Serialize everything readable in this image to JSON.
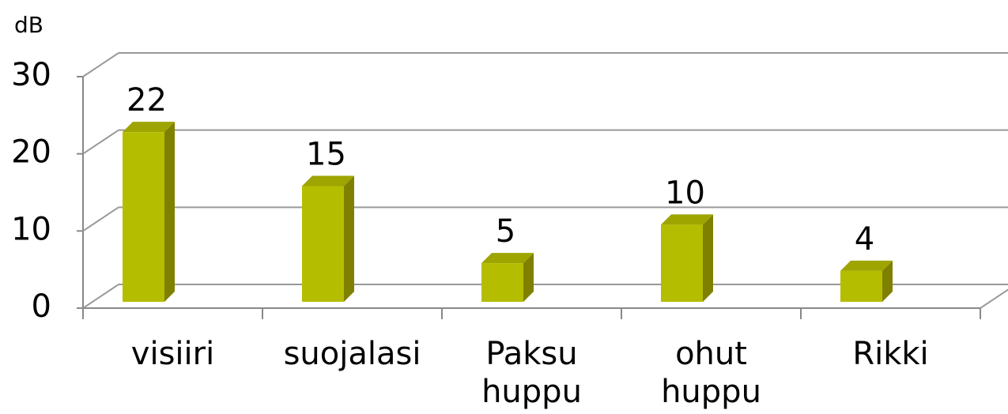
{
  "chart_data": {
    "type": "bar3d",
    "y_label": "dB",
    "categories": [
      "visiiri",
      "suojalasi",
      "Paksu huppu",
      "ohut huppu",
      "Rikki"
    ],
    "values": [
      22,
      15,
      5,
      10,
      4
    ],
    "color": "#b5bd00",
    "ylim": [
      0,
      30
    ],
    "yticks": [
      0,
      10,
      20,
      30
    ],
    "grid": true
  }
}
